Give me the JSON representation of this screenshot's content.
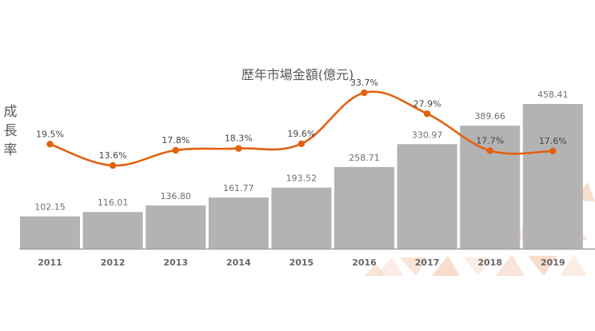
{
  "chart_data": {
    "type": "bar",
    "title": "歷年市場金額(億元)",
    "ylabel": "成長率",
    "categories": [
      "2011",
      "2012",
      "2013",
      "2014",
      "2015",
      "2016",
      "2017",
      "2018",
      "2019"
    ],
    "series": [
      {
        "type": "bar",
        "values": [
          102.15,
          116.01,
          136.8,
          161.77,
          193.52,
          258.71,
          330.97,
          389.66,
          458.41
        ],
        "labels": [
          "102.15",
          "116.01",
          "136.80",
          "161.77",
          "193.52",
          "258.71",
          "330.97",
          "389.66",
          "458.41"
        ],
        "color": "#b3b3b3"
      },
      {
        "type": "line",
        "values": [
          19.5,
          13.6,
          17.8,
          18.3,
          19.6,
          33.7,
          27.9,
          17.7,
          17.6
        ],
        "labels": [
          "19.5%",
          "13.6%",
          "17.8%",
          "18.3%",
          "19.6%",
          "33.7%",
          "27.9%",
          "17.7%",
          "17.6%"
        ],
        "color": "#e2620f"
      }
    ],
    "grid": false,
    "legend": "none"
  },
  "colors": {
    "axis": "#9e9e9e",
    "decor": "#f4c9b1"
  }
}
